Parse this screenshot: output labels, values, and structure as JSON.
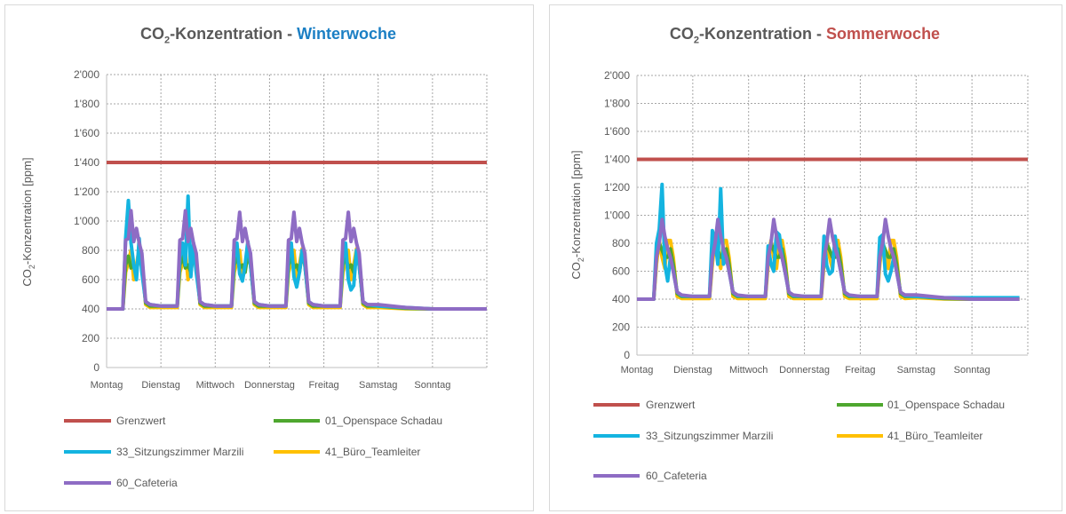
{
  "chart_data": [
    {
      "type": "line",
      "title": {
        "prefix": "CO",
        "sub": "2",
        "main": "-Konzentration - ",
        "highlight": "Winterwoche",
        "highlight_color": "#1b7fc4"
      },
      "ylabel": {
        "prefix": "CO",
        "sub": "2",
        "main": "-Konzentration [ppm]"
      },
      "ylim": [
        0,
        2000
      ],
      "yticks": [
        0,
        200,
        400,
        600,
        800,
        1000,
        1200,
        1400,
        1600,
        1800,
        2000
      ],
      "ytick_labels": [
        "0",
        "200",
        "400",
        "600",
        "800",
        "1'000",
        "1'200",
        "1'400",
        "1'600",
        "1'800",
        "2'000"
      ],
      "categories": [
        "Montag",
        "Dienstag",
        "Mittwoch",
        "Donnerstag",
        "Freitag",
        "Samstag",
        "Sonntag"
      ],
      "xlim": [
        0,
        7
      ],
      "grid": true,
      "day_sample_offsets": [
        0,
        0.3,
        0.35,
        0.4,
        0.45,
        0.5,
        0.55,
        0.6,
        0.65,
        0.72,
        0.8
      ],
      "weekend_x": [
        5,
        5.5,
        6,
        7
      ],
      "legend_placement": "bottom",
      "series": [
        {
          "name": "Grenzwert",
          "color": "#c0504d",
          "x": [
            0,
            7
          ],
          "values": [
            1400,
            1400
          ]
        },
        {
          "name": "01_Openspace Schadau",
          "color": "#4ea72e",
          "days": [
            [
              400,
              400,
              700,
              760,
              680,
              700,
              650,
              780,
              700,
              440,
              420
            ],
            [
              420,
              420,
              700,
              760,
              680,
              700,
              650,
              780,
              700,
              440,
              420
            ],
            [
              420,
              420,
              700,
              760,
              680,
              700,
              650,
              780,
              700,
              440,
              420
            ],
            [
              420,
              420,
              700,
              760,
              680,
              700,
              650,
              780,
              700,
              440,
              420
            ],
            [
              420,
              420,
              700,
              760,
              680,
              700,
              650,
              780,
              700,
              440,
              420
            ]
          ],
          "weekend": [
            420,
            405,
            400,
            400
          ]
        },
        {
          "name": "33_Sitzungszimmer Marzili",
          "color": "#14b4e0",
          "days": [
            [
              400,
              400,
              880,
              1140,
              850,
              700,
              600,
              880,
              650,
              450,
              430
            ],
            [
              420,
              420,
              750,
              850,
              700,
              1170,
              620,
              850,
              650,
              450,
              430
            ],
            [
              420,
              420,
              750,
              850,
              640,
              590,
              700,
              860,
              700,
              450,
              430
            ],
            [
              420,
              420,
              750,
              850,
              620,
              550,
              650,
              800,
              700,
              450,
              430
            ],
            [
              420,
              420,
              750,
              850,
              600,
              530,
              560,
              800,
              700,
              450,
              430
            ]
          ],
          "weekend": [
            420,
            410,
            400,
            400
          ]
        },
        {
          "name": "41_Büro_Teamleiter",
          "color": "#ffc000",
          "days": [
            [
              400,
              400,
              650,
              720,
              800,
              600,
              700,
              810,
              750,
              430,
              410
            ],
            [
              410,
              410,
              650,
              720,
              800,
              600,
              700,
              810,
              750,
              430,
              410
            ],
            [
              410,
              410,
              650,
              720,
              800,
              600,
              700,
              810,
              750,
              430,
              410
            ],
            [
              410,
              410,
              650,
              720,
              800,
              600,
              700,
              810,
              750,
              430,
              410
            ],
            [
              410,
              410,
              650,
              720,
              800,
              600,
              700,
              810,
              750,
              430,
              410
            ]
          ],
          "weekend": [
            410,
            402,
            400,
            400
          ]
        },
        {
          "name": "60_Cafeteria",
          "color": "#8e6cc4",
          "days": [
            [
              400,
              400,
              870,
              880,
              1070,
              860,
              950,
              850,
              780,
              450,
              430
            ],
            [
              420,
              420,
              870,
              880,
              1070,
              860,
              950,
              850,
              780,
              450,
              430
            ],
            [
              420,
              420,
              870,
              880,
              1060,
              860,
              950,
              850,
              780,
              450,
              430
            ],
            [
              420,
              420,
              870,
              880,
              1060,
              860,
              950,
              850,
              780,
              450,
              430
            ],
            [
              420,
              420,
              870,
              880,
              1060,
              860,
              950,
              850,
              780,
              450,
              430
            ]
          ],
          "weekend": [
            430,
            410,
            400,
            400
          ]
        }
      ]
    },
    {
      "type": "line",
      "title": {
        "prefix": "CO",
        "sub": "2",
        "main": "-Konzentration - ",
        "highlight": "Sommerwoche",
        "highlight_color": "#c0504d"
      },
      "ylabel": {
        "prefix": "CO",
        "sub": "2",
        "main": "-Konzentration [ppm]"
      },
      "ylim": [
        0,
        2000
      ],
      "yticks": [
        0,
        200,
        400,
        600,
        800,
        1000,
        1200,
        1400,
        1600,
        1800,
        2000
      ],
      "ytick_labels": [
        "0",
        "200",
        "400",
        "600",
        "800",
        "1'000",
        "1'200",
        "1'400",
        "1'600",
        "1'800",
        "2'000"
      ],
      "categories": [
        "Montag",
        "Dienstag",
        "Mittwoch",
        "Donnerstag",
        "Freitag",
        "Samstag",
        "Sonntag"
      ],
      "xlim": [
        0,
        7
      ],
      "grid": true,
      "day_sample_offsets": [
        0,
        0.3,
        0.35,
        0.4,
        0.45,
        0.5,
        0.55,
        0.6,
        0.65,
        0.72,
        0.8
      ],
      "weekend_x": [
        5,
        5.5,
        6,
        6.85
      ],
      "legend_placement": "bottom",
      "series": [
        {
          "name": "Grenzwert",
          "color": "#c0504d",
          "x": [
            0,
            7
          ],
          "values": [
            1400,
            1400
          ]
        },
        {
          "name": "01_Openspace Schadau",
          "color": "#4ea72e",
          "days": [
            [
              400,
              400,
              700,
              800,
              750,
              700,
              700,
              760,
              650,
              440,
              420
            ],
            [
              420,
              420,
              700,
              800,
              750,
              700,
              700,
              760,
              650,
              440,
              420
            ],
            [
              420,
              420,
              700,
              800,
              750,
              700,
              700,
              760,
              650,
              440,
              420
            ],
            [
              420,
              420,
              700,
              800,
              750,
              700,
              700,
              760,
              650,
              440,
              420
            ],
            [
              420,
              420,
              700,
              800,
              750,
              700,
              700,
              760,
              650,
              440,
              420
            ]
          ],
          "weekend": [
            420,
            405,
            400,
            400
          ]
        },
        {
          "name": "33_Sitzungszimmer Marzili",
          "color": "#14b4e0",
          "days": [
            [
              400,
              400,
              800,
              900,
              1220,
              650,
              530,
              700,
              600,
              450,
              425
            ],
            [
              420,
              420,
              890,
              820,
              650,
              1190,
              650,
              700,
              600,
              450,
              425
            ],
            [
              420,
              420,
              780,
              650,
              600,
              880,
              860,
              700,
              600,
              450,
              425
            ],
            [
              420,
              420,
              850,
              640,
              580,
              600,
              850,
              700,
              600,
              450,
              425
            ],
            [
              420,
              420,
              840,
              860,
              580,
              530,
              600,
              700,
              600,
              450,
              425
            ]
          ],
          "weekend": [
            420,
            410,
            410,
            410
          ]
        },
        {
          "name": "41_Büro_Teamleiter",
          "color": "#ffc000",
          "days": [
            [
              400,
              400,
              650,
              820,
              700,
              620,
              820,
              820,
              700,
              420,
              405
            ],
            [
              405,
              405,
              650,
              820,
              700,
              620,
              820,
              820,
              700,
              420,
              405
            ],
            [
              405,
              405,
              650,
              820,
              700,
              620,
              820,
              820,
              700,
              420,
              405
            ],
            [
              405,
              405,
              650,
              820,
              700,
              620,
              820,
              820,
              700,
              420,
              405
            ],
            [
              405,
              405,
              650,
              820,
              700,
              620,
              820,
              820,
              700,
              420,
              405
            ]
          ],
          "weekend": [
            410,
            402,
            400,
            400
          ]
        },
        {
          "name": "60_Cafeteria",
          "color": "#8e6cc4",
          "days": [
            [
              400,
              400,
              700,
              800,
              970,
              850,
              760,
              700,
              600,
              450,
              430
            ],
            [
              420,
              420,
              700,
              800,
              970,
              850,
              760,
              700,
              600,
              450,
              430
            ],
            [
              420,
              420,
              700,
              800,
              970,
              850,
              760,
              700,
              600,
              450,
              430
            ],
            [
              420,
              420,
              700,
              800,
              970,
              850,
              760,
              700,
              600,
              450,
              430
            ],
            [
              420,
              420,
              700,
              800,
              970,
              850,
              760,
              700,
              600,
              450,
              430
            ]
          ],
          "weekend": [
            430,
            410,
            400,
            400
          ]
        }
      ]
    }
  ]
}
